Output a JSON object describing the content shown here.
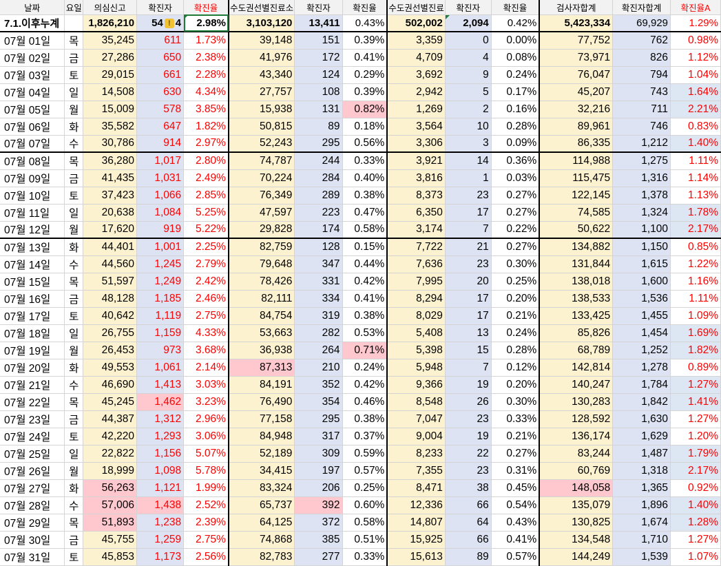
{
  "headers": [
    "날짜",
    "요일",
    "의심신고",
    "확진자",
    "확진율",
    "수도권선별진료소",
    "확진자",
    "확진율",
    "수도권선별진료",
    "확진자",
    "확진율",
    "검사자합계",
    "확진자합계",
    "확진율A"
  ],
  "total": {
    "label": "7.1.이후누계",
    "c2": "1,826,210",
    "c3_pre": "54",
    "c3_post": "4",
    "c4": "2.98%",
    "c5": "3,103,120",
    "c6": "13,411",
    "c7": "0.43%",
    "c8": "502,002",
    "c9": "2,094",
    "c10": "0.42%",
    "c11": "5,423,334",
    "c12": "69,929",
    "c13": "1.29%"
  },
  "rows": [
    [
      "07월 01일",
      "목",
      "35,245",
      "611",
      "1.73%",
      "39,148",
      "151",
      "0.39%",
      "3,359",
      "0",
      "0.00%",
      "77,752",
      "762",
      "0.98%"
    ],
    [
      "07월 02일",
      "금",
      "27,286",
      "650",
      "2.38%",
      "41,976",
      "172",
      "0.41%",
      "4,709",
      "4",
      "0.08%",
      "73,971",
      "826",
      "1.12%"
    ],
    [
      "07월 03일",
      "토",
      "29,015",
      "661",
      "2.28%",
      "43,340",
      "124",
      "0.29%",
      "3,692",
      "9",
      "0.24%",
      "76,047",
      "794",
      "1.04%"
    ],
    [
      "07월 04일",
      "일",
      "14,508",
      "630",
      "4.34%",
      "27,757",
      "108",
      "0.39%",
      "2,942",
      "5",
      "0.17%",
      "45,207",
      "743",
      "1.64%"
    ],
    [
      "07월 05일",
      "월",
      "15,009",
      "578",
      "3.85%",
      "15,938",
      "131",
      "0.82%",
      "1,269",
      "2",
      "0.16%",
      "32,216",
      "711",
      "2.21%"
    ],
    [
      "07월 06일",
      "화",
      "35,582",
      "647",
      "1.82%",
      "50,815",
      "89",
      "0.18%",
      "3,564",
      "10",
      "0.28%",
      "89,961",
      "746",
      "0.83%"
    ],
    [
      "07월 07일",
      "수",
      "30,786",
      "914",
      "2.97%",
      "52,243",
      "295",
      "0.56%",
      "3,306",
      "3",
      "0.09%",
      "86,335",
      "1,212",
      "1.40%"
    ],
    [
      "07월 08일",
      "목",
      "36,280",
      "1,017",
      "2.80%",
      "74,787",
      "244",
      "0.33%",
      "3,921",
      "14",
      "0.36%",
      "114,988",
      "1,275",
      "1.11%"
    ],
    [
      "07월 09일",
      "금",
      "41,435",
      "1,031",
      "2.49%",
      "70,224",
      "284",
      "0.40%",
      "3,816",
      "1",
      "0.03%",
      "115,475",
      "1,316",
      "1.14%"
    ],
    [
      "07월 10일",
      "토",
      "37,423",
      "1,066",
      "2.85%",
      "76,349",
      "289",
      "0.38%",
      "8,373",
      "23",
      "0.27%",
      "122,145",
      "1,378",
      "1.13%"
    ],
    [
      "07월 11일",
      "일",
      "20,638",
      "1,084",
      "5.25%",
      "47,597",
      "223",
      "0.47%",
      "6,350",
      "17",
      "0.27%",
      "74,585",
      "1,324",
      "1.78%"
    ],
    [
      "07월 12일",
      "월",
      "17,620",
      "919",
      "5.22%",
      "29,828",
      "174",
      "0.58%",
      "3,174",
      "7",
      "0.22%",
      "50,622",
      "1,100",
      "2.17%"
    ],
    [
      "07월 13일",
      "화",
      "44,401",
      "1,001",
      "2.25%",
      "82,759",
      "128",
      "0.15%",
      "7,722",
      "21",
      "0.27%",
      "134,882",
      "1,150",
      "0.85%"
    ],
    [
      "07월 14일",
      "수",
      "44,560",
      "1,245",
      "2.79%",
      "79,648",
      "347",
      "0.44%",
      "7,636",
      "23",
      "0.30%",
      "131,844",
      "1,615",
      "1.22%"
    ],
    [
      "07월 15일",
      "목",
      "51,597",
      "1,249",
      "2.42%",
      "78,426",
      "331",
      "0.42%",
      "7,995",
      "20",
      "0.25%",
      "138,018",
      "1,600",
      "1.16%"
    ],
    [
      "07월 16일",
      "금",
      "48,128",
      "1,185",
      "2.46%",
      "82,111",
      "334",
      "0.41%",
      "8,294",
      "17",
      "0.20%",
      "138,533",
      "1,536",
      "1.11%"
    ],
    [
      "07월 17일",
      "토",
      "40,642",
      "1,119",
      "2.75%",
      "84,754",
      "319",
      "0.38%",
      "8,029",
      "17",
      "0.21%",
      "133,425",
      "1,455",
      "1.09%"
    ],
    [
      "07월 18일",
      "일",
      "26,755",
      "1,159",
      "4.33%",
      "53,663",
      "282",
      "0.53%",
      "5,408",
      "13",
      "0.24%",
      "85,826",
      "1,454",
      "1.69%"
    ],
    [
      "07월 19일",
      "월",
      "26,453",
      "973",
      "3.68%",
      "36,938",
      "264",
      "0.71%",
      "5,398",
      "15",
      "0.28%",
      "68,789",
      "1,252",
      "1.82%"
    ],
    [
      "07월 20일",
      "화",
      "49,553",
      "1,061",
      "2.14%",
      "87,313",
      "210",
      "0.24%",
      "5,948",
      "7",
      "0.12%",
      "142,814",
      "1,278",
      "0.89%"
    ],
    [
      "07월 21일",
      "수",
      "46,690",
      "1,413",
      "3.03%",
      "84,191",
      "352",
      "0.42%",
      "9,366",
      "19",
      "0.20%",
      "140,247",
      "1,784",
      "1.27%"
    ],
    [
      "07월 22일",
      "목",
      "45,245",
      "1,462",
      "3.23%",
      "76,490",
      "354",
      "0.46%",
      "8,548",
      "26",
      "0.30%",
      "130,283",
      "1,842",
      "1.41%"
    ],
    [
      "07월 23일",
      "금",
      "44,387",
      "1,312",
      "2.96%",
      "77,158",
      "295",
      "0.38%",
      "7,047",
      "23",
      "0.33%",
      "128,592",
      "1,630",
      "1.27%"
    ],
    [
      "07월 24일",
      "토",
      "42,220",
      "1,293",
      "3.06%",
      "84,948",
      "317",
      "0.37%",
      "9,004",
      "19",
      "0.21%",
      "136,174",
      "1,629",
      "1.20%"
    ],
    [
      "07월 25일",
      "일",
      "22,822",
      "1,156",
      "5.07%",
      "52,189",
      "309",
      "0.59%",
      "8,233",
      "22",
      "0.27%",
      "83,244",
      "1,487",
      "1.79%"
    ],
    [
      "07월 26일",
      "월",
      "18,999",
      "1,098",
      "5.78%",
      "34,415",
      "197",
      "0.57%",
      "7,355",
      "23",
      "0.31%",
      "60,769",
      "1,318",
      "2.17%"
    ],
    [
      "07월 27일",
      "화",
      "56,263",
      "1,121",
      "1.99%",
      "83,324",
      "206",
      "0.25%",
      "8,471",
      "38",
      "0.45%",
      "148,058",
      "1,365",
      "0.92%"
    ],
    [
      "07월 28일",
      "수",
      "57,006",
      "1,438",
      "2.52%",
      "65,737",
      "392",
      "0.60%",
      "12,336",
      "66",
      "0.54%",
      "135,079",
      "1,896",
      "1.40%"
    ],
    [
      "07월 29일",
      "목",
      "51,893",
      "1,238",
      "2.39%",
      "64,125",
      "372",
      "0.58%",
      "14,807",
      "64",
      "0.43%",
      "130,825",
      "1,674",
      "1.28%"
    ],
    [
      "07월 30일",
      "금",
      "45,755",
      "1,259",
      "2.75%",
      "74,868",
      "385",
      "0.51%",
      "15,925",
      "66",
      "0.41%",
      "134,548",
      "1,710",
      "1.27%"
    ],
    [
      "07월 31일",
      "토",
      "45,853",
      "1,173",
      "2.56%",
      "82,783",
      "277",
      "0.33%",
      "15,613",
      "89",
      "0.57%",
      "144,249",
      "1,539",
      "1.07%"
    ]
  ],
  "highlights": {
    "pink": [
      [
        4,
        7
      ],
      [
        18,
        7
      ],
      [
        19,
        5
      ],
      [
        21,
        3
      ],
      [
        26,
        2
      ],
      [
        27,
        2
      ],
      [
        27,
        3
      ],
      [
        27,
        6
      ],
      [
        28,
        2
      ],
      [
        26,
        11
      ]
    ],
    "lightblue_c13": [
      3,
      4,
      6,
      10,
      11,
      17,
      18,
      20,
      21,
      24,
      25,
      27,
      28
    ]
  },
  "icons": {
    "warning": "warning-icon"
  },
  "colors": {
    "yellow_fill": "#fdf2cf",
    "blue_fill": "#dde3f2",
    "pink_fill": "#ffc7ce",
    "red_text": "#ff0000"
  }
}
